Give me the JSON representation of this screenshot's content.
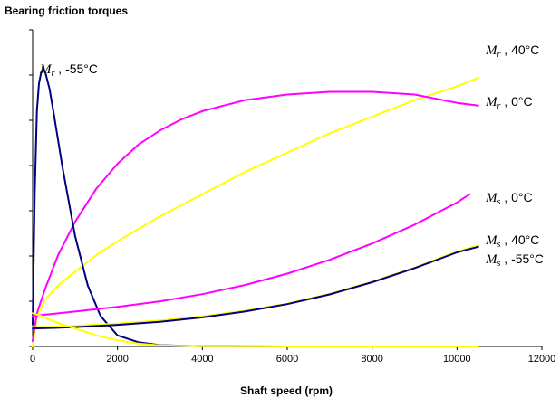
{
  "chart_data": {
    "type": "line",
    "title": "Bearing friction torques",
    "xlabel": "Shaft speed (rpm)",
    "ylabel": "",
    "xlim": [
      0,
      12000
    ],
    "ylim": [
      0,
      100
    ],
    "x_ticks": [
      "0",
      "2000",
      "4000",
      "6000",
      "8000",
      "10000",
      "12000"
    ],
    "y_tick_labels_shown": false,
    "grid": false,
    "legend": "none",
    "series": [
      {
        "name": "Mr, 40°C",
        "color": "#ffff00",
        "x": [
          0,
          100,
          300,
          600,
          1000,
          1500,
          2000,
          3000,
          4000,
          5000,
          6000,
          7000,
          8000,
          9000,
          10000,
          10500
        ],
        "y": [
          0,
          11,
          17,
          22,
          27,
          33,
          38,
          47,
          55,
          63,
          70,
          77,
          83,
          89,
          94,
          97
        ]
      },
      {
        "name": "Mr, 0°C",
        "color": "#ff00ff",
        "x": [
          0,
          100,
          300,
          600,
          1000,
          1500,
          2000,
          2500,
          3000,
          3500,
          4000,
          5000,
          6000,
          7000,
          8000,
          9000,
          10000,
          10500
        ],
        "y": [
          2,
          12,
          21,
          33,
          45,
          57,
          66,
          73,
          78,
          82,
          85,
          89,
          91,
          92,
          92,
          91,
          88,
          87
        ]
      },
      {
        "name": "Mr, -55°C",
        "color": "#000080",
        "x": [
          0,
          50,
          100,
          150,
          200,
          250,
          300,
          400,
          500,
          700,
          1000,
          1300,
          1600,
          2000,
          2500,
          3000,
          4000,
          6000,
          8000,
          10000,
          10500
        ],
        "y": [
          8,
          55,
          85,
          95,
          99,
          100,
          99,
          93,
          84,
          65,
          40,
          22,
          11,
          4,
          1.5,
          0.5,
          0.1,
          0,
          0,
          0,
          0
        ]
      },
      {
        "name": "Ms, 0°C",
        "color": "#ff00ff",
        "x": [
          0,
          500,
          1000,
          2000,
          3000,
          4000,
          5000,
          6000,
          7000,
          8000,
          9000,
          10000,
          10300
        ],
        "y": [
          11,
          11.8,
          12.6,
          14.3,
          16.3,
          18.9,
          22.2,
          26.3,
          31.3,
          37.2,
          44,
          52,
          55
        ]
      },
      {
        "name": "Ms, 40°C",
        "color": "#ffff00",
        "x": [
          0,
          500,
          1000,
          2000,
          3000,
          4000,
          5000,
          6000,
          7000,
          8000,
          9000,
          10000,
          10500
        ],
        "y": [
          7,
          7.2,
          7.5,
          8.3,
          9.4,
          10.9,
          12.9,
          15.5,
          19,
          23.4,
          28.5,
          34.3,
          36.5
        ]
      },
      {
        "name": "Ms, -55°C",
        "color": "#000080",
        "x": [
          0,
          500,
          1000,
          2000,
          3000,
          4000,
          5000,
          6000,
          7000,
          8000,
          9000,
          10000,
          10500
        ],
        "y": [
          6.5,
          6.7,
          7,
          7.8,
          8.9,
          10.5,
          12.6,
          15.3,
          18.8,
          23.2,
          28.3,
          34,
          36
        ]
      },
      {
        "name": "",
        "color": "#ffff00",
        "x": [
          0,
          200,
          500,
          1000,
          1500,
          2000,
          2500,
          3000,
          4000,
          6000,
          8000,
          10000,
          10500
        ],
        "y": [
          12,
          11,
          9,
          6.5,
          4,
          2.2,
          1,
          0.4,
          0.1,
          0,
          0,
          0,
          0
        ]
      }
    ],
    "annotations": [
      {
        "symbol": "M",
        "sub": "r",
        "rest": ", -55°C"
      },
      {
        "symbol": "M",
        "sub": "r",
        "rest": ", 40°C"
      },
      {
        "symbol": "M",
        "sub": "r",
        "rest": ", 0°C"
      },
      {
        "symbol": "M",
        "sub": "s",
        "rest": ", 0°C"
      },
      {
        "symbol": "M",
        "sub": "s",
        "rest": ", 40°C"
      },
      {
        "symbol": "M",
        "sub": "s",
        "rest": ", -55°C"
      }
    ]
  }
}
